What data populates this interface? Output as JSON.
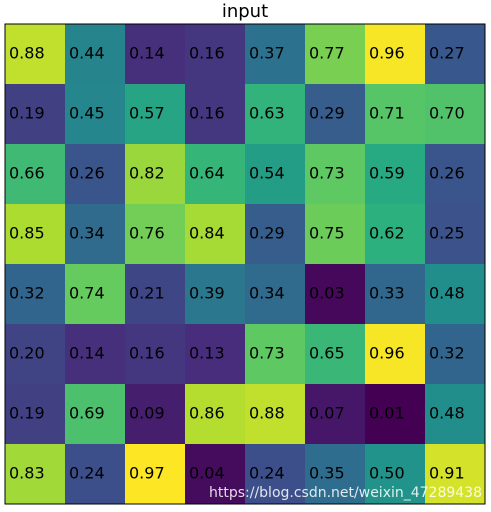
{
  "chart_data": {
    "type": "heatmap",
    "title": "input",
    "colormap": "viridis",
    "values": [
      [
        0.88,
        0.44,
        0.14,
        0.16,
        0.37,
        0.77,
        0.96,
        0.27
      ],
      [
        0.19,
        0.45,
        0.57,
        0.16,
        0.63,
        0.29,
        0.71,
        0.7
      ],
      [
        0.66,
        0.26,
        0.82,
        0.64,
        0.54,
        0.73,
        0.59,
        0.26
      ],
      [
        0.85,
        0.34,
        0.76,
        0.84,
        0.29,
        0.75,
        0.62,
        0.25
      ],
      [
        0.32,
        0.74,
        0.21,
        0.39,
        0.34,
        0.03,
        0.33,
        0.48
      ],
      [
        0.2,
        0.14,
        0.16,
        0.13,
        0.73,
        0.65,
        0.96,
        0.32
      ],
      [
        0.19,
        0.69,
        0.09,
        0.86,
        0.88,
        0.07,
        0.01,
        0.48
      ],
      [
        0.83,
        0.24,
        0.97,
        0.04,
        0.24,
        0.35,
        0.5,
        0.91
      ]
    ],
    "value_labels": [
      [
        "0.88",
        "0.44",
        "0.14",
        "0.16",
        "0.37",
        "0.77",
        "0.96",
        "0.27"
      ],
      [
        "0.19",
        "0.45",
        "0.57",
        "0.16",
        "0.63",
        "0.29",
        "0.71",
        "0.70"
      ],
      [
        "0.66",
        "0.26",
        "0.82",
        "0.64",
        "0.54",
        "0.73",
        "0.59",
        "0.26"
      ],
      [
        "0.85",
        "0.34",
        "0.76",
        "0.84",
        "0.29",
        "0.75",
        "0.62",
        "0.25"
      ],
      [
        "0.32",
        "0.74",
        "0.21",
        "0.39",
        "0.34",
        "0.03",
        "0.33",
        "0.48"
      ],
      [
        "0.20",
        "0.14",
        "0.16",
        "0.13",
        "0.73",
        "0.65",
        "0.96",
        "0.32"
      ],
      [
        "0.19",
        "0.69",
        "0.09",
        "0.86",
        "0.88",
        "0.07",
        "0.01",
        "0.48"
      ],
      [
        "0.83",
        "0.24",
        "0.97",
        "0.04",
        "0.24",
        "0.35",
        "0.50",
        "0.91"
      ]
    ],
    "watermark": "https://blog.csdn.net/weixin_47289438"
  }
}
